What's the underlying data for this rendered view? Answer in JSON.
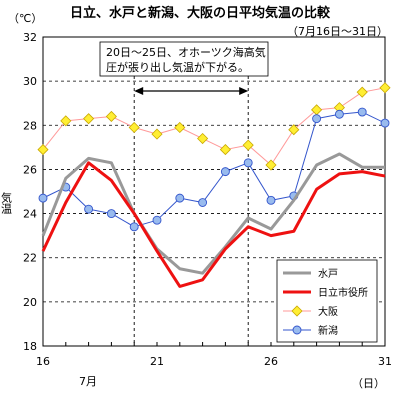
{
  "chart_data": {
    "type": "line",
    "title": "日立、水戸と新潟、大阪の日平均気温の比較",
    "subtitle": "（7月16日～31日）",
    "unit_label": "（℃）",
    "ylabel": "気温",
    "xlabel_unit": "（日）",
    "month_label": "7月",
    "annotation_line1": "20日～25日、オホーツク海高気",
    "annotation_line2": "圧が張り出し気温が下がる。",
    "annotation_span": [
      20,
      25
    ],
    "ylim": [
      18,
      32
    ],
    "yticks": [
      18,
      20,
      22,
      24,
      26,
      28,
      30,
      32
    ],
    "xlim": [
      16,
      31
    ],
    "xticks": [
      16,
      21,
      26,
      31
    ],
    "grid": "horizontal-dashed",
    "legend_position": "bottom-right",
    "x": [
      16,
      17,
      18,
      19,
      20,
      21,
      22,
      23,
      24,
      25,
      26,
      27,
      28,
      29,
      30,
      31
    ],
    "series": [
      {
        "name": "水戸",
        "color": "#999999",
        "style": "thick-line",
        "values": [
          23.0,
          25.6,
          26.5,
          26.3,
          24.0,
          22.4,
          21.5,
          21.3,
          22.5,
          23.8,
          23.3,
          24.6,
          26.2,
          26.7,
          26.1,
          26.1
        ]
      },
      {
        "name": "日立市役所",
        "color": "#ee1111",
        "style": "thick-line",
        "values": [
          22.3,
          24.5,
          26.3,
          25.5,
          24.0,
          22.3,
          20.7,
          21.0,
          22.4,
          23.4,
          23.0,
          23.2,
          25.1,
          25.8,
          25.9,
          25.7
        ]
      },
      {
        "name": "大阪",
        "color": "#ff9999",
        "style": "diamond",
        "marker_color": "#ffee33",
        "values": [
          26.9,
          28.2,
          28.3,
          28.4,
          27.9,
          27.6,
          27.9,
          27.4,
          26.9,
          27.1,
          26.2,
          27.8,
          28.7,
          28.8,
          29.5,
          29.7
        ]
      },
      {
        "name": "新潟",
        "color": "#3355cc",
        "style": "circle",
        "marker_color": "#99bbee",
        "values": [
          24.7,
          25.2,
          24.2,
          24.0,
          23.4,
          23.7,
          24.7,
          24.5,
          25.9,
          26.3,
          24.6,
          24.8,
          28.3,
          28.5,
          28.6,
          28.1
        ]
      }
    ]
  }
}
